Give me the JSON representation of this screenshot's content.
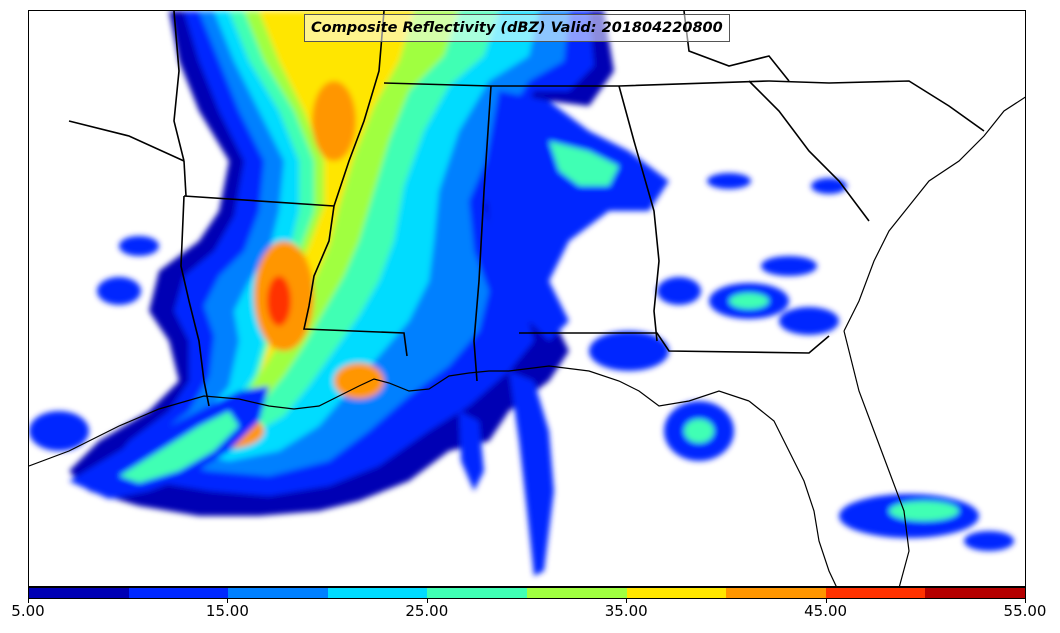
{
  "title": "Composite Reflectivity (dBZ) Valid: 201804220800",
  "colorbar": {
    "colors": [
      "#0000b4",
      "#0028ff",
      "#0080ff",
      "#00dcff",
      "#40ffb4",
      "#a0ff40",
      "#ffe600",
      "#ff9600",
      "#ff3200",
      "#b40000"
    ],
    "tick_labels": [
      "5.00",
      "15.00",
      "25.00",
      "35.00",
      "45.00",
      "55.00"
    ],
    "min": 5,
    "max": 55
  },
  "icons": {
    "map": "radar-reflectivity-map"
  }
}
